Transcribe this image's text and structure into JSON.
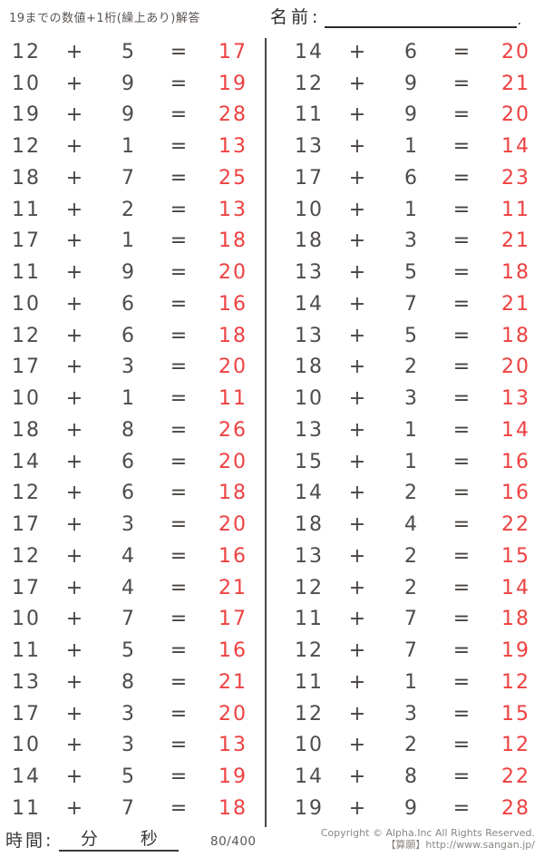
{
  "header": {
    "title": "19までの数値+1桁(繰上あり)解答",
    "name_label": "名前:",
    "name_suffix": "."
  },
  "symbols": {
    "plus": "+",
    "equals": "="
  },
  "columns": {
    "left": [
      {
        "a": 12,
        "b": 5,
        "sum": 17
      },
      {
        "a": 10,
        "b": 9,
        "sum": 19
      },
      {
        "a": 19,
        "b": 9,
        "sum": 28
      },
      {
        "a": 12,
        "b": 1,
        "sum": 13
      },
      {
        "a": 18,
        "b": 7,
        "sum": 25
      },
      {
        "a": 11,
        "b": 2,
        "sum": 13
      },
      {
        "a": 17,
        "b": 1,
        "sum": 18
      },
      {
        "a": 11,
        "b": 9,
        "sum": 20
      },
      {
        "a": 10,
        "b": 6,
        "sum": 16
      },
      {
        "a": 12,
        "b": 6,
        "sum": 18
      },
      {
        "a": 17,
        "b": 3,
        "sum": 20
      },
      {
        "a": 10,
        "b": 1,
        "sum": 11
      },
      {
        "a": 18,
        "b": 8,
        "sum": 26
      },
      {
        "a": 14,
        "b": 6,
        "sum": 20
      },
      {
        "a": 12,
        "b": 6,
        "sum": 18
      },
      {
        "a": 17,
        "b": 3,
        "sum": 20
      },
      {
        "a": 12,
        "b": 4,
        "sum": 16
      },
      {
        "a": 17,
        "b": 4,
        "sum": 21
      },
      {
        "a": 10,
        "b": 7,
        "sum": 17
      },
      {
        "a": 11,
        "b": 5,
        "sum": 16
      },
      {
        "a": 13,
        "b": 8,
        "sum": 21
      },
      {
        "a": 17,
        "b": 3,
        "sum": 20
      },
      {
        "a": 10,
        "b": 3,
        "sum": 13
      },
      {
        "a": 14,
        "b": 5,
        "sum": 19
      },
      {
        "a": 11,
        "b": 7,
        "sum": 18
      }
    ],
    "right": [
      {
        "a": 14,
        "b": 6,
        "sum": 20
      },
      {
        "a": 12,
        "b": 9,
        "sum": 21
      },
      {
        "a": 11,
        "b": 9,
        "sum": 20
      },
      {
        "a": 13,
        "b": 1,
        "sum": 14
      },
      {
        "a": 17,
        "b": 6,
        "sum": 23
      },
      {
        "a": 10,
        "b": 1,
        "sum": 11
      },
      {
        "a": 18,
        "b": 3,
        "sum": 21
      },
      {
        "a": 13,
        "b": 5,
        "sum": 18
      },
      {
        "a": 14,
        "b": 7,
        "sum": 21
      },
      {
        "a": 13,
        "b": 5,
        "sum": 18
      },
      {
        "a": 18,
        "b": 2,
        "sum": 20
      },
      {
        "a": 10,
        "b": 3,
        "sum": 13
      },
      {
        "a": 13,
        "b": 1,
        "sum": 14
      },
      {
        "a": 15,
        "b": 1,
        "sum": 16
      },
      {
        "a": 14,
        "b": 2,
        "sum": 16
      },
      {
        "a": 18,
        "b": 4,
        "sum": 22
      },
      {
        "a": 13,
        "b": 2,
        "sum": 15
      },
      {
        "a": 12,
        "b": 2,
        "sum": 14
      },
      {
        "a": 11,
        "b": 7,
        "sum": 18
      },
      {
        "a": 12,
        "b": 7,
        "sum": 19
      },
      {
        "a": 11,
        "b": 1,
        "sum": 12
      },
      {
        "a": 12,
        "b": 3,
        "sum": 15
      },
      {
        "a": 10,
        "b": 2,
        "sum": 12
      },
      {
        "a": 14,
        "b": 8,
        "sum": 22
      },
      {
        "a": 19,
        "b": 9,
        "sum": 28
      }
    ]
  },
  "footer": {
    "time_label": "時間:",
    "minutes_label": "分",
    "seconds_label": "秒",
    "page": "80/400",
    "copyright": "Copyright © Alpha.Inc All Rights Reserved.",
    "site": "【算願】http://www.sangan.jp/"
  },
  "colors": {
    "answer_red": "#ee4141",
    "text_dark": "#4f4b4b",
    "divider": "#4a4645"
  }
}
